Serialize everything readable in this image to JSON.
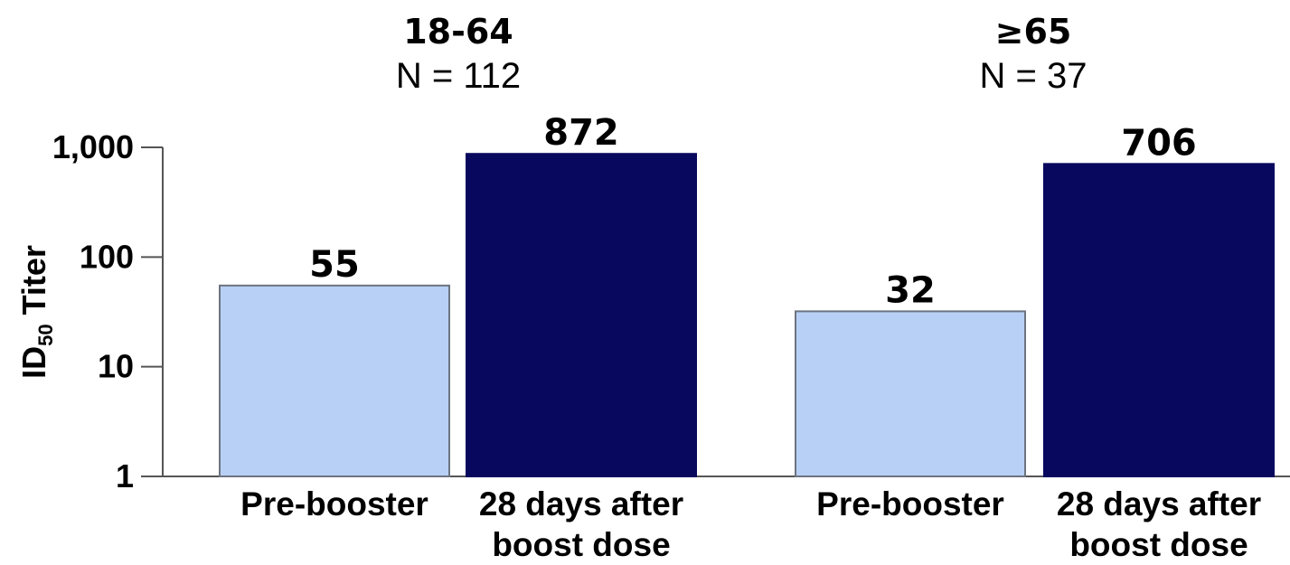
{
  "chart_data": {
    "type": "bar",
    "ylabel": {
      "main": "ID",
      "subscript": "50",
      "suffix": " Titer"
    },
    "yscale": "log",
    "ylim": [
      1,
      1000
    ],
    "yticks": [
      "1",
      "10",
      "100",
      "1,000"
    ],
    "groups": [
      {
        "title": "18-64",
        "n_label": "N = 112",
        "bars": [
          {
            "category": "Pre-booster",
            "value": 55,
            "label": "55",
            "color": "#b8d0f5"
          },
          {
            "category": "28 days after boost dose",
            "value": 872,
            "label": "872",
            "color": "#08085e"
          }
        ]
      },
      {
        "title": "≥65",
        "n_label": "N = 37",
        "bars": [
          {
            "category": "Pre-booster",
            "value": 32,
            "label": "32",
            "color": "#b8d0f5"
          },
          {
            "category": "28 days after boost dose",
            "value": 706,
            "label": "706",
            "color": "#08085e"
          }
        ]
      }
    ],
    "grid": false,
    "legend": "none"
  }
}
